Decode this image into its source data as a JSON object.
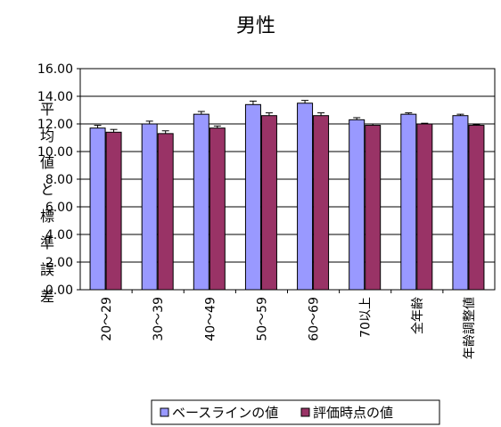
{
  "chart_data": {
    "type": "bar",
    "title": "男性",
    "ylabel": "平均値と標準誤差",
    "xlabel": "",
    "categories": [
      "20～29",
      "30～39",
      "40～49",
      "50～59",
      "60～69",
      "70以上",
      "全年齢",
      "年齢調整値"
    ],
    "series": [
      {
        "name": "ベースラインの値",
        "values": [
          11.7,
          12.0,
          12.7,
          13.4,
          13.5,
          12.3,
          12.7,
          12.6
        ],
        "errors": [
          0.2,
          0.2,
          0.2,
          0.25,
          0.2,
          0.15,
          0.1,
          0.1
        ]
      },
      {
        "name": "評価時点の値",
        "values": [
          11.4,
          11.3,
          11.7,
          12.6,
          12.6,
          11.9,
          12.0,
          11.9
        ],
        "errors": [
          0.2,
          0.2,
          0.15,
          0.2,
          0.2,
          0.1,
          0.05,
          0.05
        ]
      }
    ],
    "ylim": [
      0,
      16
    ],
    "yticks": [
      "0.00",
      "2.00",
      "4.00",
      "6.00",
      "8.00",
      "10.00",
      "12.00",
      "14.00",
      "16.00"
    ],
    "grid": true,
    "legend": "bottom"
  },
  "colors": {
    "series": [
      "#9999ff",
      "#993366"
    ],
    "plot_background": "#ffffff",
    "grid": "#000000"
  }
}
